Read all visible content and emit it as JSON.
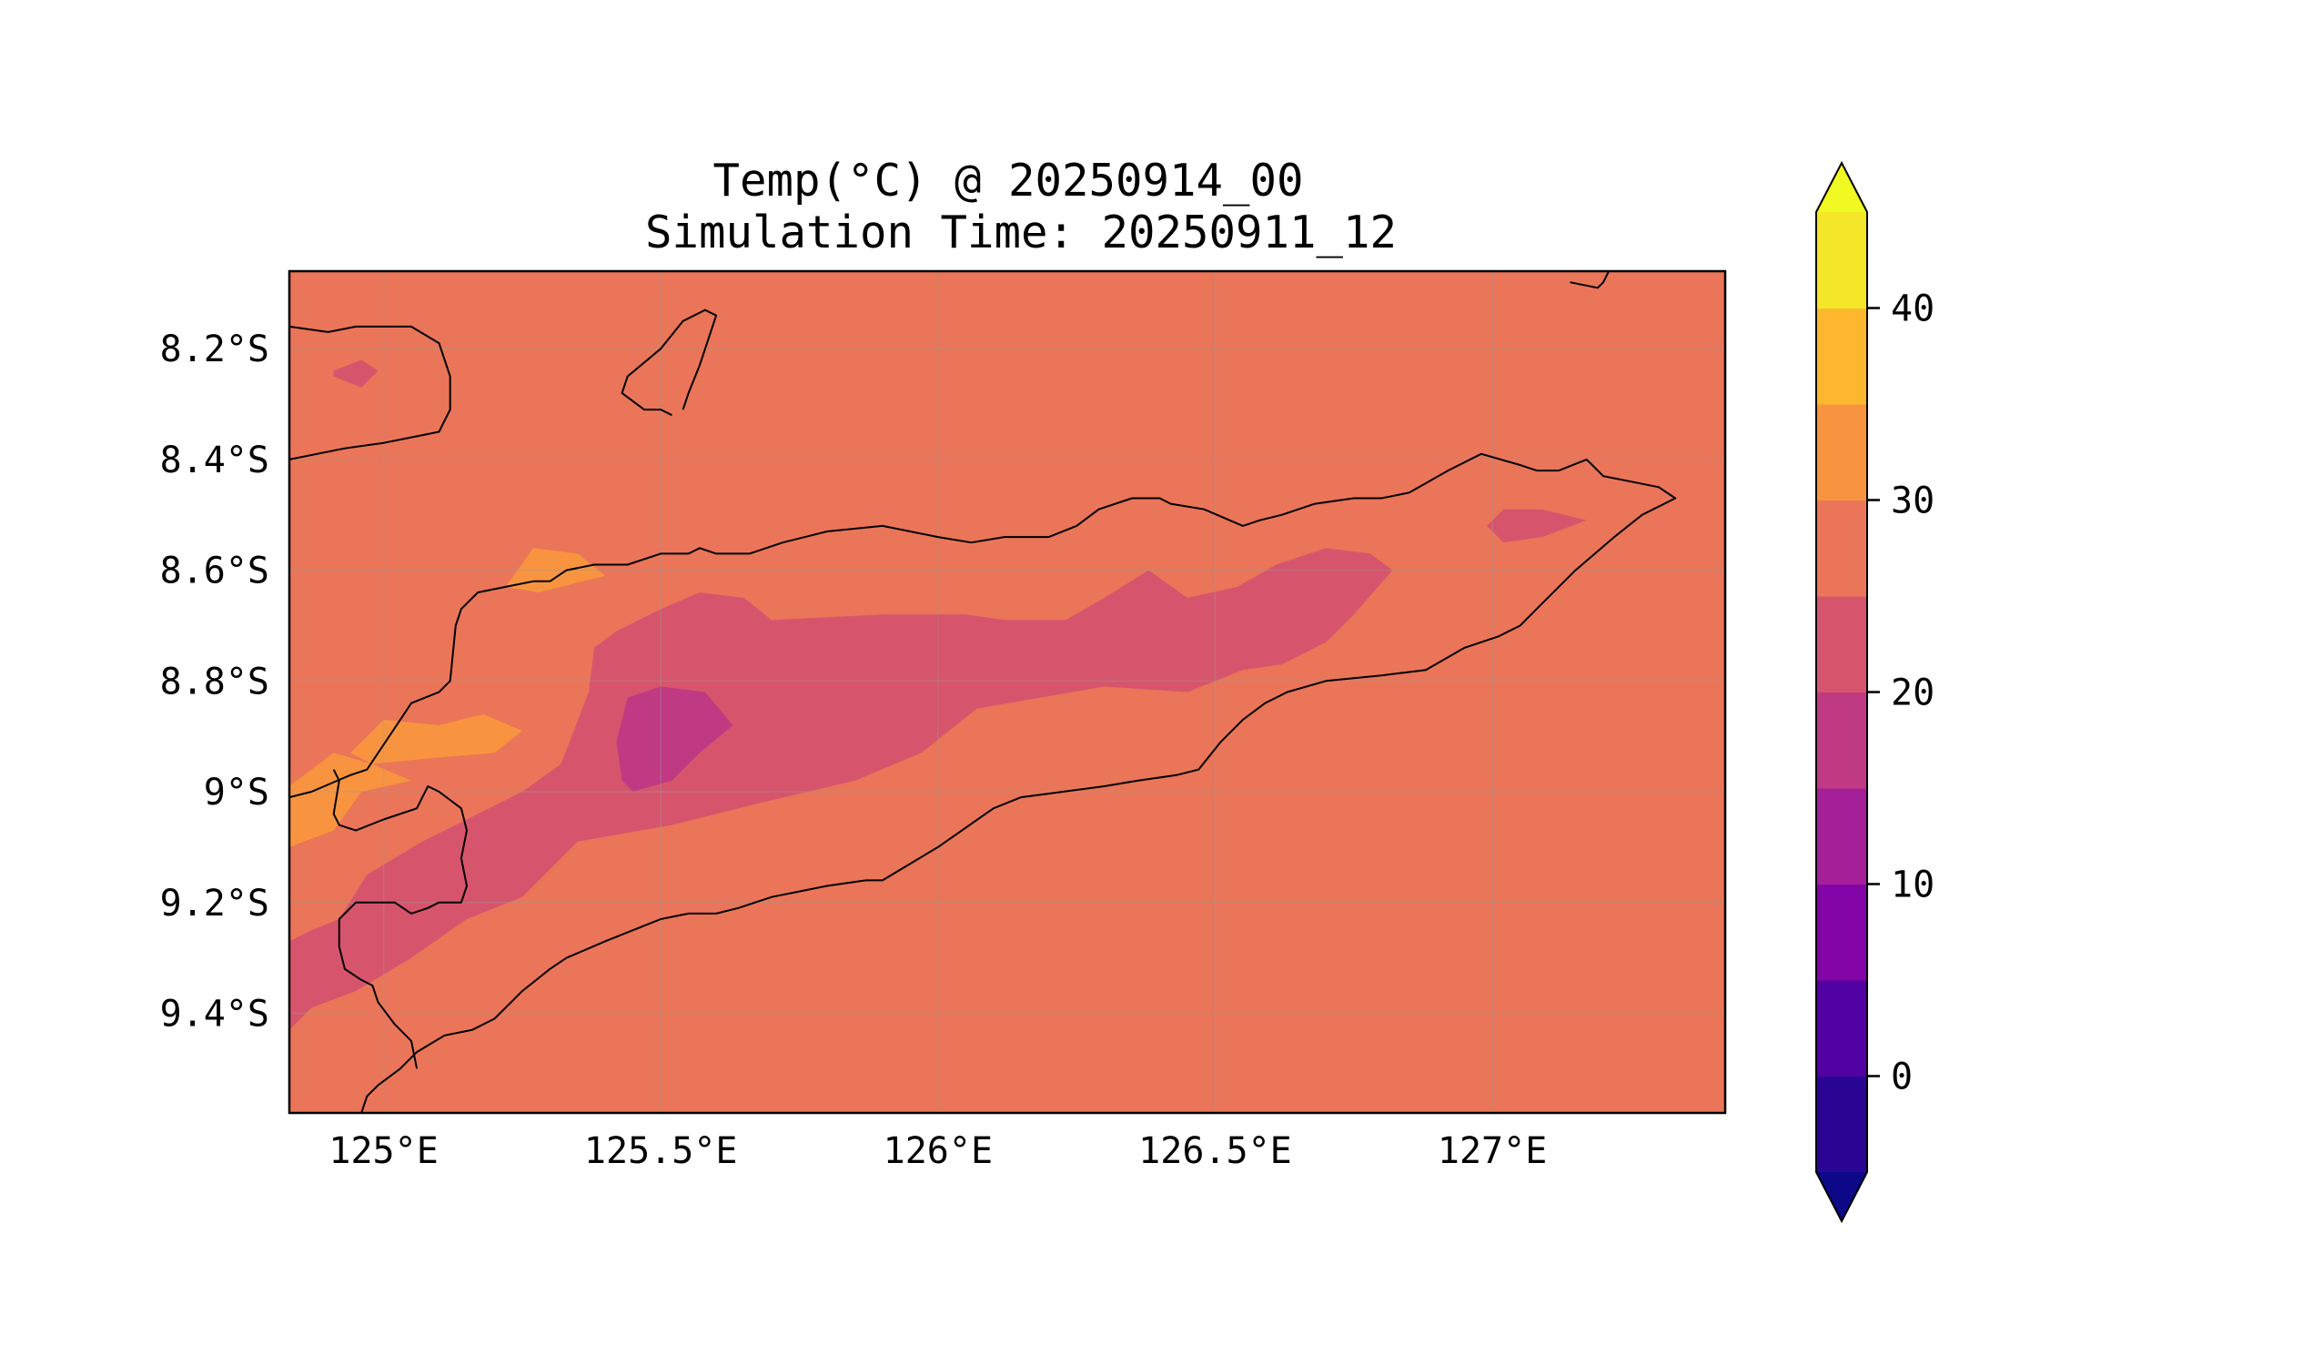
{
  "title": "Temp(°C) @ 20250914_00",
  "subtitle": "Simulation Time: 20250911_12",
  "map": {
    "lon_ticks": [
      {
        "value": 125.0,
        "label": "125°E"
      },
      {
        "value": 125.5,
        "label": "125.5°E"
      },
      {
        "value": 126.0,
        "label": "126°E"
      },
      {
        "value": 126.5,
        "label": "126.5°E"
      },
      {
        "value": 127.0,
        "label": "127°E"
      }
    ],
    "lat_ticks": [
      {
        "value": -8.2,
        "label": "8.2°S"
      },
      {
        "value": -8.4,
        "label": "8.4°S"
      },
      {
        "value": -8.6,
        "label": "8.6°S"
      },
      {
        "value": -8.8,
        "label": "8.8°S"
      },
      {
        "value": -9.0,
        "label": "9°S"
      },
      {
        "value": -9.2,
        "label": "9.2°S"
      },
      {
        "value": -9.4,
        "label": "9.4°S"
      }
    ],
    "background_level_color": "#ea7558"
  },
  "chart_data": {
    "type": "heatmap",
    "title": "Temp(°C) @ 20250914_00",
    "subtitle": "Simulation Time: 20250911_12",
    "xlim": [
      124.83,
      127.42
    ],
    "ylim": [
      -9.58,
      -8.06
    ],
    "grid": true,
    "legend": "colorbar-right",
    "colorbar": {
      "levels": [
        -5,
        0,
        5,
        10,
        15,
        20,
        25,
        30,
        35,
        40,
        45
      ],
      "colors": [
        "#2a0593",
        "#5201a3",
        "#8305a7",
        "#a51f99",
        "#c03a83",
        "#d6556d",
        "#ea7558",
        "#f89440",
        "#fdb72f",
        "#f4e628"
      ],
      "under_color": "#0d0887",
      "over_color": "#f0f921",
      "tick_values": [
        0,
        10,
        20,
        30,
        40
      ],
      "tick_labels": [
        "0",
        "10",
        "20",
        "30",
        "40"
      ],
      "extend": "both"
    },
    "contour_regions": [
      {
        "band": "20-25",
        "color": "#d6556d",
        "points": [
          [
            124.83,
            -9.43
          ],
          [
            124.87,
            -9.39
          ],
          [
            124.95,
            -9.36
          ],
          [
            125.05,
            -9.3
          ],
          [
            125.15,
            -9.23
          ],
          [
            125.25,
            -9.19
          ],
          [
            125.35,
            -9.09
          ],
          [
            125.52,
            -9.06
          ],
          [
            125.68,
            -9.02
          ],
          [
            125.85,
            -8.98
          ],
          [
            125.97,
            -8.93
          ],
          [
            126.07,
            -8.85
          ],
          [
            126.3,
            -8.81
          ],
          [
            126.45,
            -8.82
          ],
          [
            126.55,
            -8.78
          ],
          [
            126.62,
            -8.77
          ],
          [
            126.7,
            -8.73
          ],
          [
            126.75,
            -8.68
          ],
          [
            126.82,
            -8.6
          ],
          [
            126.78,
            -8.57
          ],
          [
            126.7,
            -8.56
          ],
          [
            126.61,
            -8.59
          ],
          [
            126.54,
            -8.63
          ],
          [
            126.45,
            -8.65
          ],
          [
            126.38,
            -8.6
          ],
          [
            126.3,
            -8.65
          ],
          [
            126.23,
            -8.69
          ],
          [
            126.12,
            -8.69
          ],
          [
            126.05,
            -8.68
          ],
          [
            125.9,
            -8.68
          ],
          [
            125.7,
            -8.69
          ],
          [
            125.65,
            -8.65
          ],
          [
            125.57,
            -8.64
          ],
          [
            125.5,
            -8.67
          ],
          [
            125.42,
            -8.71
          ],
          [
            125.38,
            -8.74
          ],
          [
            125.37,
            -8.82
          ],
          [
            125.32,
            -8.95
          ],
          [
            125.25,
            -9.0
          ],
          [
            125.15,
            -9.05
          ],
          [
            125.07,
            -9.09
          ],
          [
            124.97,
            -9.15
          ],
          [
            124.92,
            -9.23
          ],
          [
            124.87,
            -9.25
          ],
          [
            124.83,
            -9.27
          ]
        ]
      },
      {
        "band": "20-25",
        "color": "#d6556d",
        "points": [
          [
            124.91,
            -8.24
          ],
          [
            124.96,
            -8.22
          ],
          [
            124.99,
            -8.24
          ],
          [
            124.96,
            -8.27
          ],
          [
            124.91,
            -8.25
          ]
        ]
      },
      {
        "band": "20-25",
        "color": "#d6556d",
        "points": [
          [
            126.99,
            -8.52
          ],
          [
            127.02,
            -8.49
          ],
          [
            127.09,
            -8.49
          ],
          [
            127.17,
            -8.51
          ],
          [
            127.09,
            -8.54
          ],
          [
            127.02,
            -8.55
          ]
        ]
      },
      {
        "band": "15-20",
        "color": "#c03a83",
        "points": [
          [
            125.43,
            -8.98
          ],
          [
            125.42,
            -8.91
          ],
          [
            125.44,
            -8.83
          ],
          [
            125.5,
            -8.81
          ],
          [
            125.58,
            -8.82
          ],
          [
            125.63,
            -8.88
          ],
          [
            125.57,
            -8.93
          ],
          [
            125.52,
            -8.98
          ],
          [
            125.45,
            -9.0
          ]
        ]
      },
      {
        "band": "30-35",
        "color": "#f89440",
        "points": [
          [
            125.22,
            -8.63
          ],
          [
            125.27,
            -8.56
          ],
          [
            125.35,
            -8.57
          ],
          [
            125.4,
            -8.61
          ],
          [
            125.28,
            -8.64
          ]
        ]
      },
      {
        "band": "30-35",
        "color": "#f89440",
        "points": [
          [
            124.94,
            -8.93
          ],
          [
            125.0,
            -8.87
          ],
          [
            125.1,
            -8.88
          ],
          [
            125.18,
            -8.86
          ],
          [
            125.25,
            -8.89
          ],
          [
            125.2,
            -8.93
          ],
          [
            125.08,
            -8.94
          ],
          [
            124.98,
            -8.95
          ]
        ]
      },
      {
        "band": "30-35",
        "color": "#f89440",
        "points": [
          [
            124.83,
            -9.1
          ],
          [
            124.83,
            -8.99
          ],
          [
            124.91,
            -8.93
          ],
          [
            124.98,
            -8.95
          ],
          [
            125.05,
            -8.98
          ],
          [
            124.96,
            -9.0
          ],
          [
            124.91,
            -9.07
          ]
        ]
      }
    ],
    "coastlines": [
      [
        [
          124.83,
          -8.16
        ],
        [
          124.9,
          -8.17
        ],
        [
          124.95,
          -8.16
        ],
        [
          124.98,
          -8.16
        ],
        [
          125.05,
          -8.16
        ],
        [
          125.1,
          -8.19
        ],
        [
          125.12,
          -8.25
        ],
        [
          125.12,
          -8.31
        ],
        [
          125.1,
          -8.35
        ],
        [
          125.05,
          -8.36
        ],
        [
          125.0,
          -8.37
        ],
        [
          124.93,
          -8.38
        ],
        [
          124.83,
          -8.4
        ]
      ],
      [
        [
          125.52,
          -8.32
        ],
        [
          125.5,
          -8.31
        ],
        [
          125.47,
          -8.31
        ],
        [
          125.43,
          -8.28
        ],
        [
          125.44,
          -8.25
        ],
        [
          125.5,
          -8.2
        ],
        [
          125.54,
          -8.15
        ],
        [
          125.58,
          -8.13
        ],
        [
          125.6,
          -8.14
        ],
        [
          125.57,
          -8.23
        ],
        [
          125.55,
          -8.28
        ],
        [
          125.54,
          -8.31
        ]
      ],
      [
        [
          127.14,
          -8.08
        ],
        [
          127.19,
          -8.09
        ],
        [
          127.2,
          -8.08
        ],
        [
          127.21,
          -8.06
        ],
        [
          127.16,
          -8.06
        ]
      ],
      [
        [
          124.83,
          -9.01
        ],
        [
          124.87,
          -9.0
        ],
        [
          124.94,
          -8.97
        ],
        [
          124.97,
          -8.96
        ],
        [
          124.99,
          -8.93
        ],
        [
          125.03,
          -8.87
        ],
        [
          125.05,
          -8.84
        ],
        [
          125.1,
          -8.82
        ],
        [
          125.12,
          -8.8
        ],
        [
          125.13,
          -8.7
        ],
        [
          125.14,
          -8.67
        ],
        [
          125.17,
          -8.64
        ],
        [
          125.22,
          -8.63
        ],
        [
          125.27,
          -8.62
        ],
        [
          125.3,
          -8.62
        ],
        [
          125.33,
          -8.6
        ],
        [
          125.38,
          -8.59
        ],
        [
          125.44,
          -8.59
        ],
        [
          125.5,
          -8.57
        ],
        [
          125.55,
          -8.57
        ],
        [
          125.57,
          -8.56
        ],
        [
          125.6,
          -8.57
        ],
        [
          125.66,
          -8.57
        ],
        [
          125.72,
          -8.55
        ],
        [
          125.8,
          -8.53
        ],
        [
          125.9,
          -8.52
        ],
        [
          126.0,
          -8.54
        ],
        [
          126.06,
          -8.55
        ],
        [
          126.12,
          -8.54
        ],
        [
          126.2,
          -8.54
        ],
        [
          126.25,
          -8.52
        ],
        [
          126.29,
          -8.49
        ],
        [
          126.35,
          -8.47
        ],
        [
          126.4,
          -8.47
        ],
        [
          126.42,
          -8.48
        ],
        [
          126.48,
          -8.49
        ],
        [
          126.55,
          -8.52
        ],
        [
          126.58,
          -8.51
        ],
        [
          126.62,
          -8.5
        ],
        [
          126.68,
          -8.48
        ],
        [
          126.75,
          -8.47
        ],
        [
          126.8,
          -8.47
        ],
        [
          126.85,
          -8.46
        ],
        [
          126.92,
          -8.42
        ],
        [
          126.98,
          -8.39
        ],
        [
          127.05,
          -8.41
        ],
        [
          127.08,
          -8.42
        ],
        [
          127.12,
          -8.42
        ],
        [
          127.17,
          -8.4
        ],
        [
          127.2,
          -8.43
        ],
        [
          127.25,
          -8.44
        ],
        [
          127.3,
          -8.45
        ],
        [
          127.33,
          -8.47
        ],
        [
          127.27,
          -8.5
        ],
        [
          127.22,
          -8.54
        ],
        [
          127.15,
          -8.6
        ],
        [
          127.09,
          -8.66
        ],
        [
          127.05,
          -8.7
        ],
        [
          127.01,
          -8.72
        ],
        [
          126.95,
          -8.74
        ],
        [
          126.88,
          -8.78
        ],
        [
          126.8,
          -8.79
        ],
        [
          126.7,
          -8.8
        ],
        [
          126.63,
          -8.82
        ],
        [
          126.59,
          -8.84
        ],
        [
          126.55,
          -8.87
        ],
        [
          126.51,
          -8.91
        ],
        [
          126.47,
          -8.96
        ],
        [
          126.43,
          -8.97
        ],
        [
          126.36,
          -8.98
        ],
        [
          126.3,
          -8.99
        ],
        [
          126.15,
          -9.01
        ],
        [
          126.1,
          -9.03
        ],
        [
          126.0,
          -9.1
        ],
        [
          125.9,
          -9.16
        ],
        [
          125.87,
          -9.16
        ],
        [
          125.8,
          -9.17
        ],
        [
          125.75,
          -9.18
        ],
        [
          125.7,
          -9.19
        ],
        [
          125.64,
          -9.21
        ],
        [
          125.6,
          -9.22
        ],
        [
          125.55,
          -9.22
        ],
        [
          125.5,
          -9.23
        ],
        [
          125.4,
          -9.27
        ],
        [
          125.33,
          -9.3
        ],
        [
          125.3,
          -9.32
        ],
        [
          125.25,
          -9.36
        ],
        [
          125.23,
          -9.38
        ],
        [
          125.2,
          -9.41
        ],
        [
          125.16,
          -9.43
        ],
        [
          125.11,
          -9.44
        ],
        [
          125.06,
          -9.47
        ],
        [
          125.03,
          -9.5
        ],
        [
          124.99,
          -9.53
        ],
        [
          124.97,
          -9.55
        ],
        [
          124.96,
          -9.58
        ]
      ],
      [
        [
          125.06,
          -9.5
        ],
        [
          125.05,
          -9.45
        ],
        [
          125.02,
          -9.42
        ],
        [
          124.99,
          -9.38
        ],
        [
          124.98,
          -9.35
        ],
        [
          124.96,
          -9.34
        ],
        [
          124.93,
          -9.32
        ],
        [
          124.92,
          -9.28
        ],
        [
          124.92,
          -9.23
        ],
        [
          124.95,
          -9.2
        ],
        [
          125.02,
          -9.2
        ],
        [
          125.05,
          -9.22
        ],
        [
          125.08,
          -9.21
        ],
        [
          125.1,
          -9.2
        ],
        [
          125.14,
          -9.2
        ],
        [
          125.15,
          -9.17
        ],
        [
          125.14,
          -9.12
        ],
        [
          125.15,
          -9.07
        ],
        [
          125.14,
          -9.03
        ],
        [
          125.1,
          -9.0
        ],
        [
          125.08,
          -8.99
        ],
        [
          125.07,
          -9.01
        ],
        [
          125.06,
          -9.03
        ],
        [
          125.0,
          -9.05
        ],
        [
          124.95,
          -9.07
        ],
        [
          124.92,
          -9.06
        ],
        [
          124.91,
          -9.04
        ],
        [
          124.92,
          -8.98
        ],
        [
          124.91,
          -8.96
        ]
      ]
    ]
  }
}
